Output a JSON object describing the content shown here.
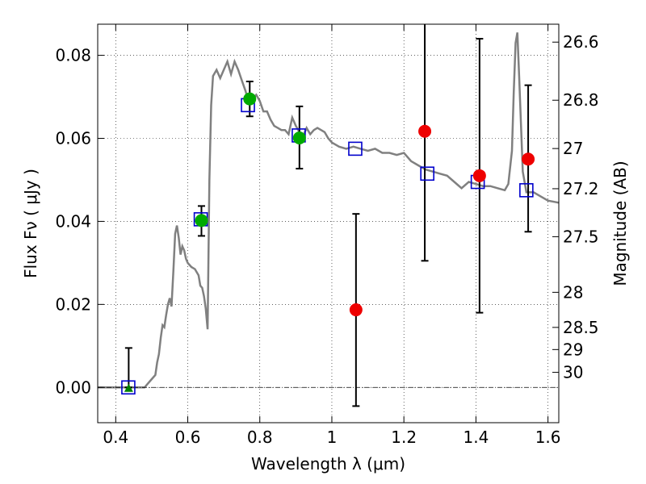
{
  "chart_data": {
    "type": "scatter",
    "xlabel": "Wavelength  λ (μm)",
    "ylabel": "Flux  Fν ( μJy )",
    "ylabel_right": "Magnitude (AB)",
    "xlim": [
      0.35,
      1.63
    ],
    "ylim": [
      -0.0085,
      0.0875
    ],
    "grid": true,
    "x_ticks": [
      {
        "value": 0.4,
        "label": "0.4"
      },
      {
        "value": 0.6,
        "label": "0.6"
      },
      {
        "value": 0.8,
        "label": "0.8"
      },
      {
        "value": 1.0,
        "label": "1"
      },
      {
        "value": 1.2,
        "label": "1.2"
      },
      {
        "value": 1.4,
        "label": "1.4"
      },
      {
        "value": 1.6,
        "label": "1.6"
      }
    ],
    "y_ticks": [
      {
        "value": 0.0,
        "label": "0.00"
      },
      {
        "value": 0.02,
        "label": "0.02"
      },
      {
        "value": 0.04,
        "label": "0.04"
      },
      {
        "value": 0.06,
        "label": "0.06"
      },
      {
        "value": 0.08,
        "label": "0.08"
      }
    ],
    "right_ticks": [
      {
        "value": 26.6,
        "label": "26.6"
      },
      {
        "value": 26.8,
        "label": "26.8"
      },
      {
        "value": 27.0,
        "label": "27"
      },
      {
        "value": 27.2,
        "label": "27.2"
      },
      {
        "value": 27.5,
        "label": "27.5"
      },
      {
        "value": 28.0,
        "label": "28"
      },
      {
        "value": 28.5,
        "label": "28.5"
      },
      {
        "value": 29.0,
        "label": "29"
      },
      {
        "value": 30.0,
        "label": "30"
      }
    ],
    "colors": {
      "sed_line": "#808080",
      "model_box": "#0000cc",
      "detection": "#00aa00",
      "low_sn": "#ee0000",
      "upper_limit": "#008000",
      "errorbar": "#000000"
    },
    "sed_curve": [
      [
        0.35,
        0.0
      ],
      [
        0.48,
        0.0
      ],
      [
        0.49,
        0.001
      ],
      [
        0.5,
        0.002
      ],
      [
        0.51,
        0.003
      ],
      [
        0.515,
        0.006
      ],
      [
        0.52,
        0.008
      ],
      [
        0.525,
        0.012
      ],
      [
        0.53,
        0.015
      ],
      [
        0.535,
        0.0145
      ],
      [
        0.54,
        0.0175
      ],
      [
        0.545,
        0.02
      ],
      [
        0.55,
        0.0215
      ],
      [
        0.555,
        0.0195
      ],
      [
        0.56,
        0.028
      ],
      [
        0.565,
        0.037
      ],
      [
        0.57,
        0.039
      ],
      [
        0.575,
        0.036
      ],
      [
        0.58,
        0.032
      ],
      [
        0.585,
        0.034
      ],
      [
        0.59,
        0.033
      ],
      [
        0.595,
        0.031
      ],
      [
        0.6,
        0.03
      ],
      [
        0.61,
        0.029
      ],
      [
        0.62,
        0.0285
      ],
      [
        0.63,
        0.027
      ],
      [
        0.635,
        0.0245
      ],
      [
        0.64,
        0.024
      ],
      [
        0.645,
        0.022
      ],
      [
        0.65,
        0.019
      ],
      [
        0.655,
        0.014
      ],
      [
        0.66,
        0.05
      ],
      [
        0.665,
        0.068
      ],
      [
        0.67,
        0.075
      ],
      [
        0.68,
        0.0765
      ],
      [
        0.69,
        0.0745
      ],
      [
        0.7,
        0.0765
      ],
      [
        0.71,
        0.0785
      ],
      [
        0.72,
        0.0755
      ],
      [
        0.73,
        0.0785
      ],
      [
        0.74,
        0.0765
      ],
      [
        0.75,
        0.074
      ],
      [
        0.76,
        0.0715
      ],
      [
        0.77,
        0.0685
      ],
      [
        0.78,
        0.0695
      ],
      [
        0.79,
        0.0705
      ],
      [
        0.8,
        0.069
      ],
      [
        0.81,
        0.0665
      ],
      [
        0.82,
        0.0665
      ],
      [
        0.83,
        0.0645
      ],
      [
        0.84,
        0.063
      ],
      [
        0.85,
        0.0625
      ],
      [
        0.86,
        0.062
      ],
      [
        0.87,
        0.062
      ],
      [
        0.88,
        0.061
      ],
      [
        0.89,
        0.065
      ],
      [
        0.9,
        0.063
      ],
      [
        0.91,
        0.0615
      ],
      [
        0.92,
        0.0605
      ],
      [
        0.93,
        0.0625
      ],
      [
        0.94,
        0.061
      ],
      [
        0.95,
        0.062
      ],
      [
        0.96,
        0.0625
      ],
      [
        0.97,
        0.062
      ],
      [
        0.98,
        0.0615
      ],
      [
        0.99,
        0.06
      ],
      [
        1.0,
        0.059
      ],
      [
        1.02,
        0.058
      ],
      [
        1.04,
        0.0575
      ],
      [
        1.06,
        0.058
      ],
      [
        1.08,
        0.0575
      ],
      [
        1.1,
        0.057
      ],
      [
        1.12,
        0.0575
      ],
      [
        1.14,
        0.0565
      ],
      [
        1.16,
        0.0565
      ],
      [
        1.18,
        0.056
      ],
      [
        1.2,
        0.0565
      ],
      [
        1.22,
        0.0545
      ],
      [
        1.24,
        0.0535
      ],
      [
        1.26,
        0.0525
      ],
      [
        1.28,
        0.052
      ],
      [
        1.3,
        0.0515
      ],
      [
        1.32,
        0.051
      ],
      [
        1.34,
        0.0495
      ],
      [
        1.36,
        0.048
      ],
      [
        1.38,
        0.0495
      ],
      [
        1.4,
        0.049
      ],
      [
        1.42,
        0.0485
      ],
      [
        1.44,
        0.0485
      ],
      [
        1.46,
        0.048
      ],
      [
        1.48,
        0.0475
      ],
      [
        1.49,
        0.049
      ],
      [
        1.5,
        0.057
      ],
      [
        1.505,
        0.071
      ],
      [
        1.51,
        0.083
      ],
      [
        1.515,
        0.0855
      ],
      [
        1.52,
        0.075
      ],
      [
        1.53,
        0.052
      ],
      [
        1.54,
        0.047
      ],
      [
        1.56,
        0.047
      ],
      [
        1.58,
        0.046
      ],
      [
        1.6,
        0.045
      ],
      [
        1.63,
        0.0445
      ]
    ],
    "series": [
      {
        "marker": "square",
        "points": [
          {
            "x": 0.435,
            "y": 0.0
          },
          {
            "x": 0.636,
            "y": 0.0405
          },
          {
            "x": 0.767,
            "y": 0.068
          },
          {
            "x": 0.908,
            "y": 0.0607
          },
          {
            "x": 1.065,
            "y": 0.0575
          },
          {
            "x": 1.265,
            "y": 0.0515
          },
          {
            "x": 1.405,
            "y": 0.0495
          },
          {
            "x": 1.54,
            "y": 0.0475
          }
        ]
      },
      {
        "marker": "circle",
        "points": [
          {
            "x": 0.638,
            "y": 0.0402,
            "yerr_low": 0.0365,
            "yerr_high": 0.0437
          },
          {
            "x": 0.772,
            "y": 0.0695,
            "yerr_low": 0.0653,
            "yerr_high": 0.0737
          },
          {
            "x": 0.91,
            "y": 0.0601,
            "yerr_low": 0.0527,
            "yerr_high": 0.0677
          }
        ]
      },
      {
        "marker": "circle",
        "points": [
          {
            "x": 1.067,
            "y": 0.0187,
            "yerr_low": -0.0045,
            "yerr_high": 0.0418
          },
          {
            "x": 1.258,
            "y": 0.0617,
            "yerr_low": 0.0305,
            "yerr_high": 0.0895
          },
          {
            "x": 1.41,
            "y": 0.051,
            "yerr_low": 0.018,
            "yerr_high": 0.084
          },
          {
            "x": 1.545,
            "y": 0.055,
            "yerr_low": 0.0375,
            "yerr_high": 0.0728
          }
        ]
      },
      {
        "marker": "triangle",
        "points": [
          {
            "x": 0.436,
            "y": -0.0003,
            "yerr_low": 0.0,
            "yerr_high": 0.0095
          }
        ]
      }
    ]
  }
}
